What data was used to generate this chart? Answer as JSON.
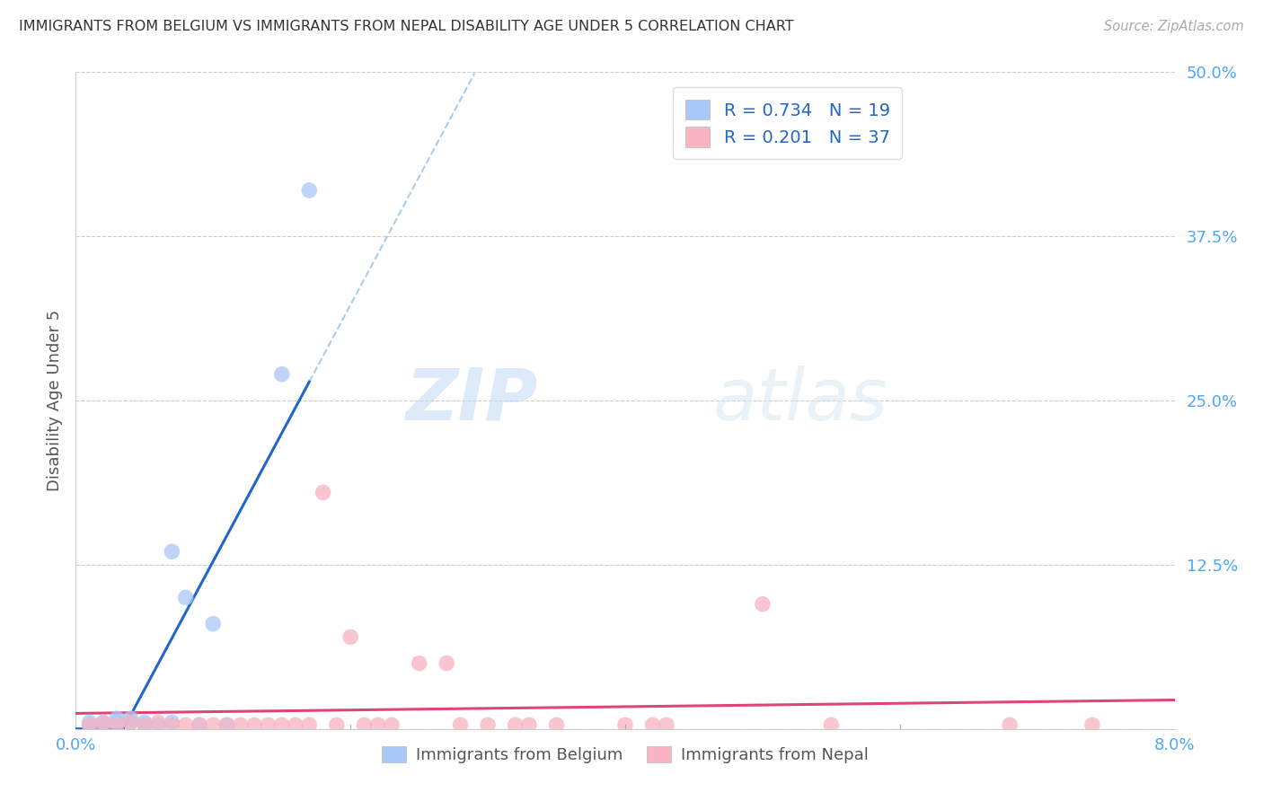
{
  "title": "IMMIGRANTS FROM BELGIUM VS IMMIGRANTS FROM NEPAL DISABILITY AGE UNDER 5 CORRELATION CHART",
  "source": "Source: ZipAtlas.com",
  "ylabel": "Disability Age Under 5",
  "xlim": [
    0.0,
    0.08
  ],
  "ylim": [
    0.0,
    0.5
  ],
  "yticks": [
    0.0,
    0.125,
    0.25,
    0.375,
    0.5
  ],
  "ytick_labels": [
    "",
    "12.5%",
    "25.0%",
    "37.5%",
    "50.0%"
  ],
  "tick_color": "#4da6ff",
  "belgium_color": "#a8c8f8",
  "nepal_color": "#f8b4c0",
  "belgium_line_color": "#2266cc",
  "nepal_line_color": "#dd4477",
  "dashed_line_color": "#aaccee",
  "background_color": "#ffffff",
  "watermark_zip": "ZIP",
  "watermark_atlas": "atlas",
  "legend_R_belgium": "0.734",
  "legend_N_belgium": "19",
  "legend_R_nepal": "0.201",
  "legend_N_nepal": "37",
  "belgium_x": [
    0.001,
    0.001,
    0.002,
    0.002,
    0.003,
    0.003,
    0.004,
    0.004,
    0.005,
    0.005,
    0.006,
    0.007,
    0.007,
    0.008,
    0.009,
    0.01,
    0.011,
    0.015,
    0.017
  ],
  "belgium_y": [
    0.003,
    0.005,
    0.003,
    0.005,
    0.005,
    0.008,
    0.005,
    0.008,
    0.005,
    0.003,
    0.003,
    0.135,
    0.005,
    0.1,
    0.003,
    0.08,
    0.003,
    0.27,
    0.41
  ],
  "nepal_x": [
    0.001,
    0.002,
    0.003,
    0.004,
    0.005,
    0.006,
    0.007,
    0.008,
    0.009,
    0.01,
    0.011,
    0.012,
    0.013,
    0.014,
    0.015,
    0.016,
    0.017,
    0.018,
    0.019,
    0.02,
    0.021,
    0.022,
    0.023,
    0.025,
    0.027,
    0.028,
    0.03,
    0.032,
    0.033,
    0.035,
    0.04,
    0.042,
    0.043,
    0.05,
    0.055,
    0.068,
    0.074
  ],
  "nepal_y": [
    0.003,
    0.005,
    0.003,
    0.005,
    0.003,
    0.005,
    0.003,
    0.003,
    0.003,
    0.003,
    0.003,
    0.003,
    0.003,
    0.003,
    0.003,
    0.003,
    0.003,
    0.18,
    0.003,
    0.07,
    0.003,
    0.003,
    0.003,
    0.05,
    0.05,
    0.003,
    0.003,
    0.003,
    0.003,
    0.003,
    0.003,
    0.003,
    0.003,
    0.095,
    0.003,
    0.003,
    0.003
  ]
}
